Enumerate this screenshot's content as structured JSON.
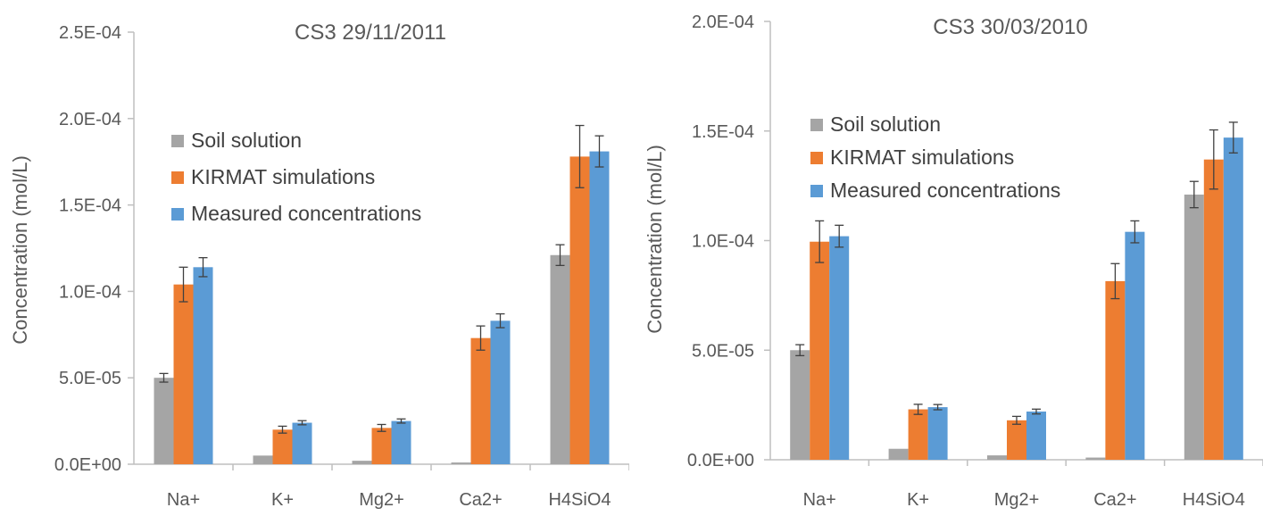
{
  "chart_data": [
    {
      "type": "bar",
      "title": "CS3 29/11/2011",
      "ylabel": "Concentration (mol/L)",
      "xlabel": "",
      "ylim": [
        0,
        0.00025
      ],
      "ytick_labels": [
        "0.0E+00",
        "5.0E-05",
        "1.0E-04",
        "1.5E-04",
        "2.0E-04",
        "2.5E-04"
      ],
      "categories": [
        "Na+",
        "K+",
        "Mg2+",
        "Ca2+",
        "H4SiO4"
      ],
      "legend_position": "upper-left",
      "grid": false,
      "series": [
        {
          "name": "Soil solution",
          "color": "#A5A5A5",
          "values": [
            5e-05,
            5e-06,
            2e-06,
            1e-06,
            0.000121
          ],
          "errors": [
            2.5e-06,
            0,
            0,
            0,
            6e-06
          ]
        },
        {
          "name": "KIRMAT simulations",
          "color": "#ED7D31",
          "values": [
            0.000104,
            2e-05,
            2.1e-05,
            7.3e-05,
            0.000178
          ],
          "errors": [
            1e-05,
            2e-06,
            2e-06,
            7e-06,
            1.8e-05
          ]
        },
        {
          "name": "Measured concentrations",
          "color": "#5B9BD5",
          "values": [
            0.000114,
            2.4e-05,
            2.5e-05,
            8.3e-05,
            0.000181
          ],
          "errors": [
            5.5e-06,
            1.2e-06,
            1.2e-06,
            4e-06,
            9e-06
          ]
        }
      ]
    },
    {
      "type": "bar",
      "title": "CS3 30/03/2010",
      "ylabel": "Concentration (mol/L)",
      "xlabel": "",
      "ylim": [
        0,
        0.0002
      ],
      "ytick_labels": [
        "0.0E+00",
        "5.0E-05",
        "1.0E-04",
        "1.5E-04",
        "2.0E-04"
      ],
      "categories": [
        "Na+",
        "K+",
        "Mg2+",
        "Ca2+",
        "H4SiO4"
      ],
      "legend_position": "upper-left",
      "grid": false,
      "series": [
        {
          "name": "Soil solution",
          "color": "#A5A5A5",
          "values": [
            5e-05,
            5e-06,
            2e-06,
            1e-06,
            0.000121
          ],
          "errors": [
            2.5e-06,
            0,
            0,
            0,
            6e-06
          ]
        },
        {
          "name": "KIRMAT simulations",
          "color": "#ED7D31",
          "values": [
            9.95e-05,
            2.3e-05,
            1.8e-05,
            8.15e-05,
            0.000137
          ],
          "errors": [
            9.5e-06,
            2.3e-06,
            1.8e-06,
            8e-06,
            1.35e-05
          ]
        },
        {
          "name": "Measured concentrations",
          "color": "#5B9BD5",
          "values": [
            0.000102,
            2.4e-05,
            2.2e-05,
            0.000104,
            0.000147
          ],
          "errors": [
            5e-06,
            1.2e-06,
            1.1e-06,
            5e-06,
            7e-06
          ]
        }
      ]
    }
  ]
}
